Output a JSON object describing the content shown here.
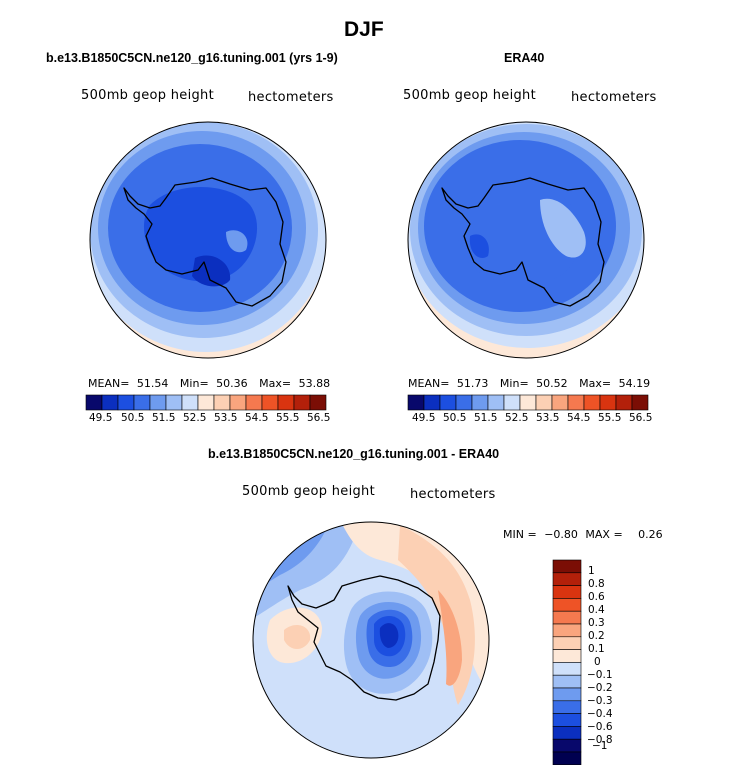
{
  "figure": {
    "title": "DJF",
    "panel_left_title": "b.e13.B1850C5CN.ne120_g16.tuning.001 (yrs 1-9)",
    "panel_right_title": "ERA40",
    "panel_bottom_title": "b.e13.B1850C5CN.ne120_g16.tuning.001 - ERA40"
  },
  "panels": {
    "left": {
      "variable": "500mb geop height",
      "units": "hectometers",
      "mean_label": "MEAN=",
      "mean": "51.54",
      "min_label": "Min=",
      "min": "50.36",
      "max_label": "Max=",
      "max": "53.88"
    },
    "right": {
      "variable": "500mb geop height",
      "units": "hectometers",
      "mean_label": "MEAN=",
      "mean": "51.73",
      "min_label": "Min=",
      "min": "50.52",
      "max_label": "Max=",
      "max": "54.19"
    },
    "bottom": {
      "variable": "500mb geop height",
      "units": "hectometers",
      "min_label": "MIN =",
      "min": "−0.80",
      "max_label": "MAX =",
      "max": "0.26"
    }
  },
  "colorbar_abs": {
    "ticks": [
      "49.5",
      "50.5",
      "51.5",
      "52.5",
      "53.5",
      "54.5",
      "55.5",
      "56.5"
    ],
    "colors": [
      "#08086b",
      "#0b2fbf",
      "#1c4fe0",
      "#3a6ee8",
      "#6e9bef",
      "#9fbff5",
      "#cfe0fa",
      "#fde8d8",
      "#fcd0b4",
      "#f9a57e",
      "#f5794f",
      "#ee5326",
      "#d93410",
      "#b3200a",
      "#7b0e05"
    ]
  },
  "colorbar_diff": {
    "labels": [
      "1",
      "0.8",
      "0.6",
      "0.4",
      "0.3",
      "0.2",
      "0.1",
      "0",
      "−0.1",
      "−0.2",
      "−0.3",
      "−0.4",
      "−0.6",
      "−0.8",
      "−1"
    ],
    "colors": [
      "#7b0e05",
      "#b3200a",
      "#d93410",
      "#ee5326",
      "#f5794f",
      "#f9a57e",
      "#fcd0b4",
      "#fde8d8",
      "#cfe0fa",
      "#9fbff5",
      "#6e9bef",
      "#3a6ee8",
      "#1c4fe0",
      "#0b2fbf",
      "#08086b",
      "#000050"
    ]
  },
  "chart_data": [
    {
      "type": "heatmap",
      "title": "b.e13.B1850C5CN.ne120_g16.tuning.001 (yrs 1-9)",
      "projection": "south polar stereographic",
      "variable": "500mb geop height",
      "units": "hectometers",
      "stats": {
        "mean": 51.54,
        "min": 50.36,
        "max": 53.88
      },
      "levels": [
        49.5,
        50.5,
        51.5,
        52.5,
        53.5,
        54.5,
        55.5,
        56.5
      ]
    },
    {
      "type": "heatmap",
      "title": "ERA40",
      "projection": "south polar stereographic",
      "variable": "500mb geop height",
      "units": "hectometers",
      "stats": {
        "mean": 51.73,
        "min": 50.52,
        "max": 54.19
      },
      "levels": [
        49.5,
        50.5,
        51.5,
        52.5,
        53.5,
        54.5,
        55.5,
        56.5
      ]
    },
    {
      "type": "heatmap",
      "title": "b.e13.B1850C5CN.ne120_g16.tuning.001 - ERA40",
      "projection": "south polar stereographic",
      "variable": "500mb geop height",
      "units": "hectometers",
      "stats": {
        "min": -0.8,
        "max": 0.26
      },
      "levels": [
        -1,
        -0.8,
        -0.6,
        -0.4,
        -0.3,
        -0.2,
        -0.1,
        0,
        0.1,
        0.2,
        0.3,
        0.4,
        0.6,
        0.8,
        1
      ]
    }
  ]
}
